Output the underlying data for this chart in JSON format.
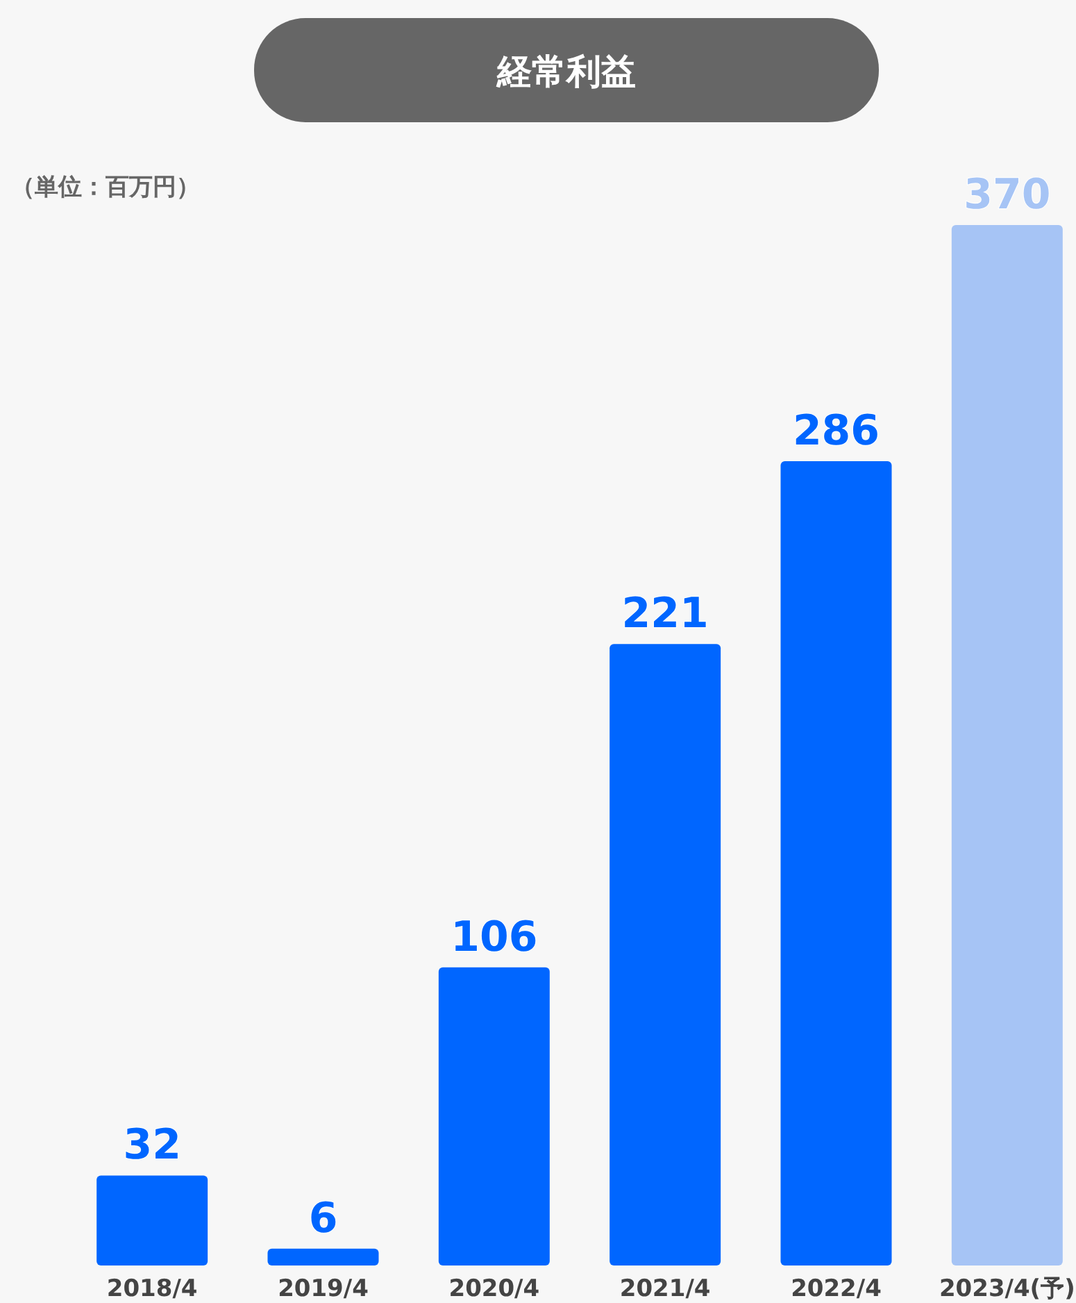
{
  "chart_data": {
    "type": "bar",
    "title": "経常利益",
    "annotations": [
      "（単位：百万円）"
    ],
    "categories": [
      "2018/4",
      "2019/4",
      "2020/4",
      "2021/4",
      "2022/4",
      "2023/4(予)"
    ],
    "values": [
      32,
      6,
      106,
      221,
      286,
      370
    ],
    "colors": [
      "#0066ff",
      "#0066ff",
      "#0066ff",
      "#0066ff",
      "#0066ff",
      "#a6c4f5"
    ],
    "data_labels": true
  }
}
